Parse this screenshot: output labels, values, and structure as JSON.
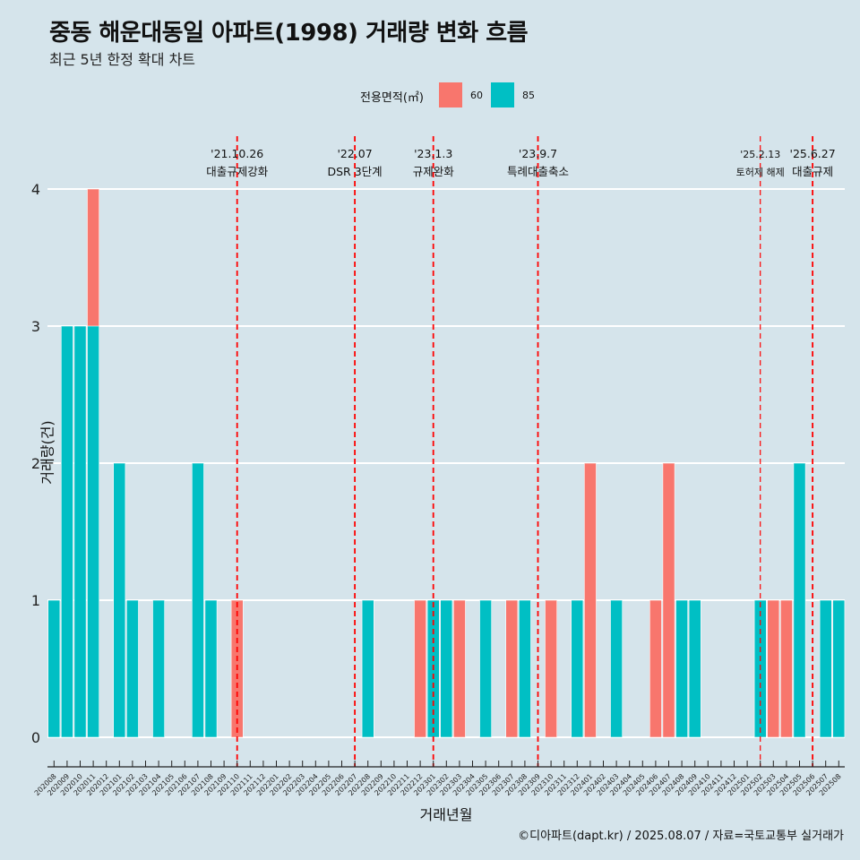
{
  "title": "중동 해운대동일 아파트(1998) 거래량 변화 흐름",
  "subtitle": "최근 5년 한정 확대 차트",
  "caption": "©디아파트(dapt.kr) / 2025.08.07 / 자료=국토교통부 실거래가",
  "legend": {
    "title": "전용면적(㎡)",
    "items": [
      {
        "label": "60",
        "color": "#f8766d"
      },
      {
        "label": "85",
        "color": "#00bfc4"
      }
    ]
  },
  "chart_data": {
    "type": "bar",
    "xlabel": "거래년월",
    "ylabel": "거래량(건)",
    "ylim": [
      0,
      4
    ],
    "yticks": [
      0,
      1,
      2,
      3,
      4
    ],
    "categories": [
      "202008",
      "202009",
      "202010",
      "202011",
      "202012",
      "202101",
      "202102",
      "202103",
      "202104",
      "202105",
      "202106",
      "202107",
      "202108",
      "202109",
      "202110",
      "202111",
      "202112",
      "202201",
      "202202",
      "202203",
      "202204",
      "202205",
      "202206",
      "202207",
      "202208",
      "202209",
      "202210",
      "202211",
      "202212",
      "202301",
      "202302",
      "202303",
      "202304",
      "202305",
      "202306",
      "202307",
      "202308",
      "202309",
      "202310",
      "202311",
      "202312",
      "202401",
      "202402",
      "202403",
      "202404",
      "202405",
      "202406",
      "202407",
      "202408",
      "202409",
      "202410",
      "202411",
      "202412",
      "202501",
      "202502",
      "202503",
      "202504",
      "202505",
      "202506",
      "202507",
      "202508"
    ],
    "series": [
      {
        "name": "60",
        "color": "#f8766d",
        "values": [
          1,
          2,
          1,
          4,
          0,
          1,
          0,
          0,
          0,
          0,
          0,
          0,
          1,
          0,
          1,
          0,
          0,
          0,
          0,
          0,
          0,
          0,
          0,
          0,
          1,
          0,
          0,
          0,
          1,
          0,
          0,
          1,
          0,
          0,
          0,
          1,
          0,
          0,
          1,
          0,
          0,
          2,
          0,
          0,
          0,
          0,
          1,
          2,
          1,
          0,
          0,
          0,
          0,
          0,
          0,
          1,
          1,
          0,
          0,
          0,
          0
        ]
      },
      {
        "name": "85",
        "color": "#00bfc4",
        "values": [
          1,
          3,
          3,
          3,
          0,
          2,
          1,
          0,
          1,
          0,
          0,
          2,
          1,
          0,
          0,
          0,
          0,
          0,
          0,
          0,
          0,
          0,
          0,
          0,
          1,
          0,
          0,
          0,
          0,
          1,
          1,
          0,
          0,
          1,
          0,
          0,
          1,
          0,
          0,
          0,
          1,
          0,
          0,
          1,
          0,
          0,
          0,
          0,
          1,
          1,
          0,
          0,
          0,
          0,
          1,
          0,
          0,
          2,
          0,
          1,
          1
        ]
      }
    ],
    "annotations": [
      {
        "date": "'21.10.26",
        "label": "대출규제강화",
        "category": "202110",
        "small": false
      },
      {
        "date": "'22.07",
        "label": "DSR 3단계",
        "category": "202207",
        "small": false
      },
      {
        "date": "'23.1.3",
        "label": "규제완화",
        "category": "202301",
        "small": false
      },
      {
        "date": "'23.9.7",
        "label": "특례대출축소",
        "category": "202309",
        "small": false
      },
      {
        "date": "'25.2.13",
        "label": "토허제 해제",
        "category": "202502",
        "small": true
      },
      {
        "date": "'25.6.27",
        "label": "대출규제",
        "category": "202506",
        "small": false
      }
    ]
  }
}
